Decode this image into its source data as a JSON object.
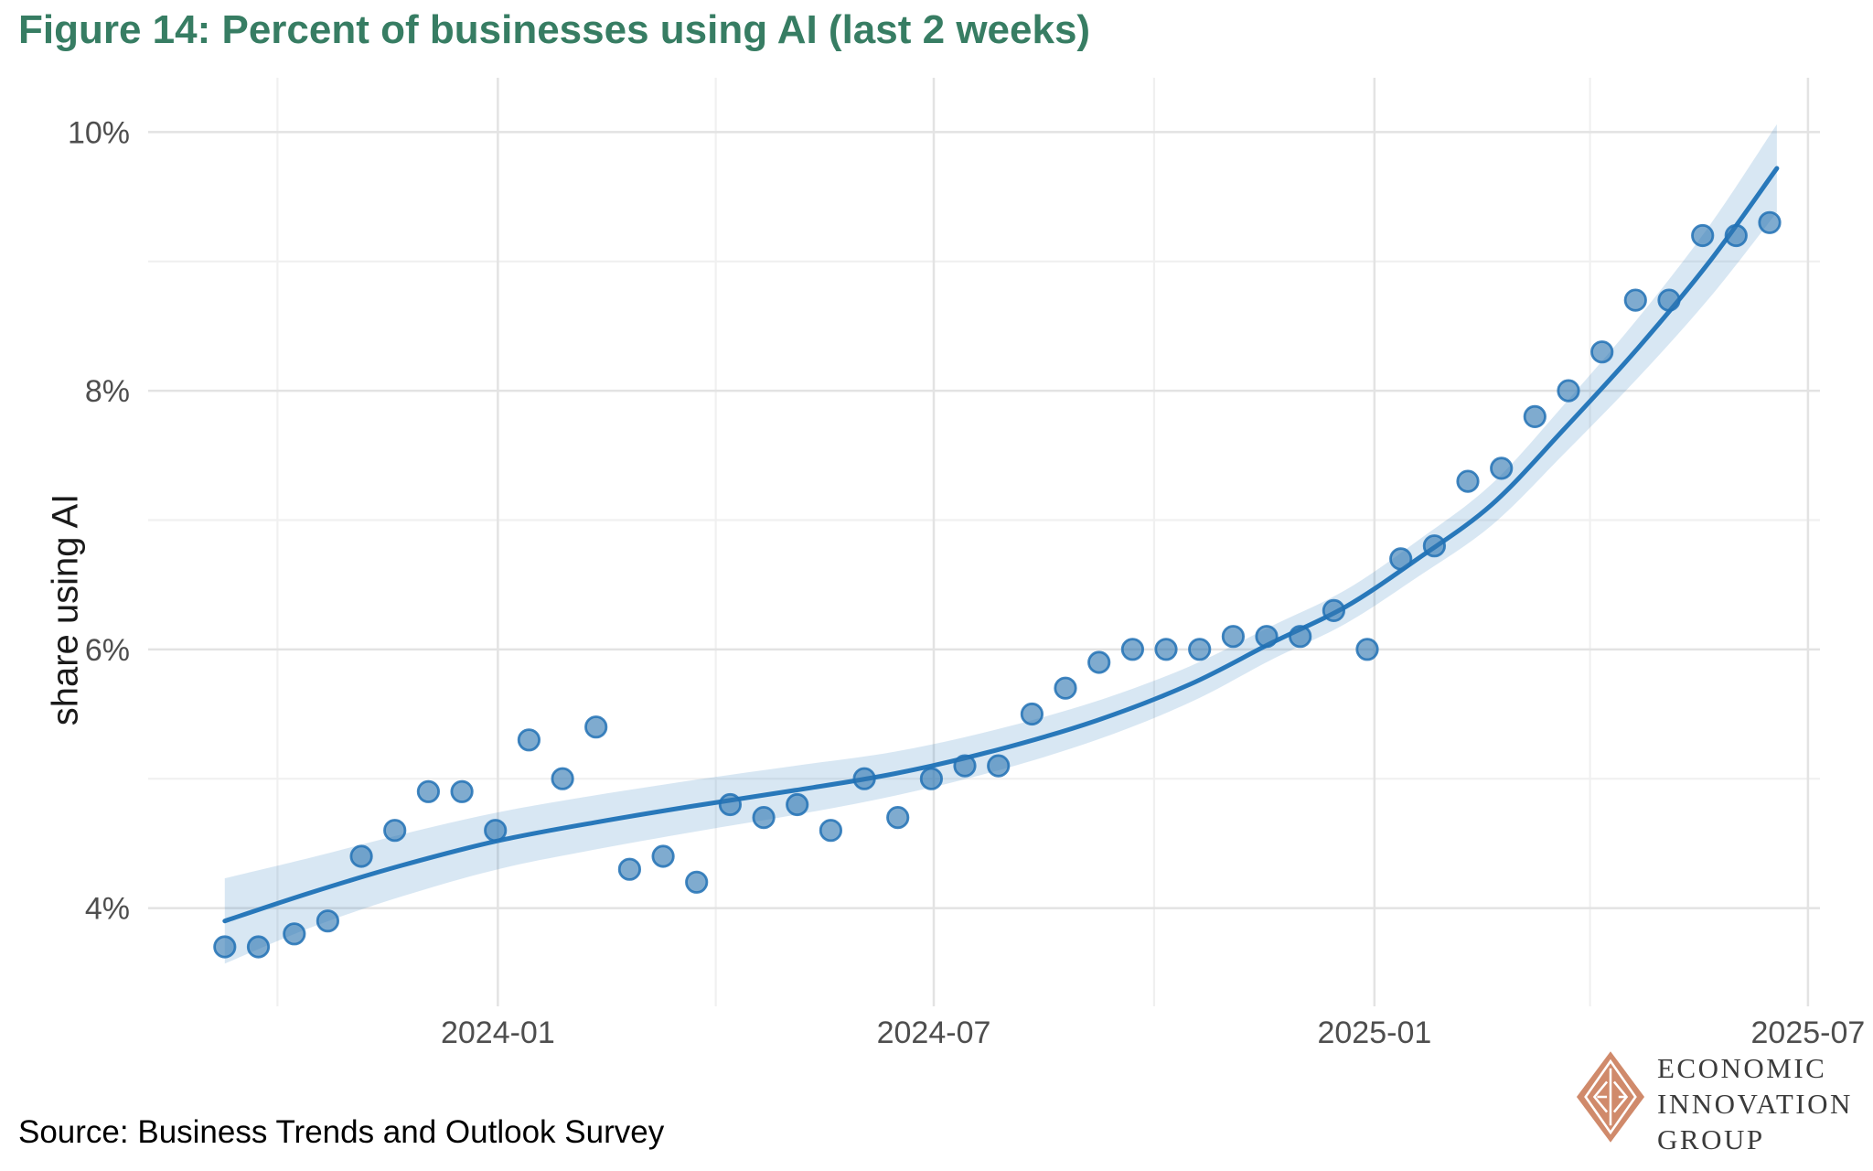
{
  "title": "Figure 14: Percent of businesses using AI (last 2 weeks)",
  "source": "Source: Business Trends and Outlook Survey",
  "logo": {
    "line1": "ECONOMIC",
    "line2": "INNOVATION",
    "line3": "GROUP"
  },
  "colors": {
    "title_green": "#377D63",
    "trend_line": "#2878BA",
    "confidence_band": "rgba(40,120,186,0.18)",
    "point_fill": "rgba(49,119,177,0.62)",
    "point_stroke": "rgba(33,113,181,0.85)",
    "grid_major": "#e3e3e3",
    "grid_minor": "#f0f0f0",
    "tick_text": "#4e4e4e",
    "axis_title_text": "#1a1a1a",
    "logo_diamond": "#D08A6B",
    "logo_text": "#3b3b3b"
  },
  "chart_data": {
    "type": "scatter",
    "title": "Figure 14: Percent of businesses using AI (last 2 weeks)",
    "xlabel": "",
    "ylabel": "share using AI",
    "legend_position": "none",
    "grid": true,
    "xlim": [
      "2023-08-08",
      "2025-07-06"
    ],
    "ylim": [
      3.24,
      10.42
    ],
    "x_ticks": [
      {
        "label": "2024-01",
        "date": "2024-01-01"
      },
      {
        "label": "2024-07",
        "date": "2024-07-01"
      },
      {
        "label": "2025-01",
        "date": "2025-01-01"
      },
      {
        "label": "2025-07",
        "date": "2025-07-01"
      }
    ],
    "x_minor": [
      "2023-10-01",
      "2024-04-01",
      "2024-10-01",
      "2025-04-01"
    ],
    "y_ticks": [
      {
        "label": "4%",
        "value": 4
      },
      {
        "label": "6%",
        "value": 6
      },
      {
        "label": "8%",
        "value": 8
      },
      {
        "label": "10%",
        "value": 10
      }
    ],
    "y_minor": [
      5,
      7,
      9
    ],
    "points": [
      {
        "date": "2023-09-09",
        "value": 3.7
      },
      {
        "date": "2023-09-23",
        "value": 3.7
      },
      {
        "date": "2023-10-08",
        "value": 3.8
      },
      {
        "date": "2023-10-22",
        "value": 3.9
      },
      {
        "date": "2023-11-05",
        "value": 4.4
      },
      {
        "date": "2023-11-19",
        "value": 4.6
      },
      {
        "date": "2023-12-03",
        "value": 4.9
      },
      {
        "date": "2023-12-17",
        "value": 4.9
      },
      {
        "date": "2023-12-31",
        "value": 4.6
      },
      {
        "date": "2024-01-14",
        "value": 5.3
      },
      {
        "date": "2024-01-28",
        "value": 5.0
      },
      {
        "date": "2024-02-11",
        "value": 5.4
      },
      {
        "date": "2024-02-25",
        "value": 4.3
      },
      {
        "date": "2024-03-10",
        "value": 4.4
      },
      {
        "date": "2024-03-24",
        "value": 4.2
      },
      {
        "date": "2024-04-07",
        "value": 4.8
      },
      {
        "date": "2024-04-21",
        "value": 4.7
      },
      {
        "date": "2024-05-05",
        "value": 4.8
      },
      {
        "date": "2024-05-19",
        "value": 4.6
      },
      {
        "date": "2024-06-02",
        "value": 5.0
      },
      {
        "date": "2024-06-16",
        "value": 4.7
      },
      {
        "date": "2024-06-30",
        "value": 5.0
      },
      {
        "date": "2024-07-14",
        "value": 5.1
      },
      {
        "date": "2024-07-28",
        "value": 5.1
      },
      {
        "date": "2024-08-11",
        "value": 5.5
      },
      {
        "date": "2024-08-25",
        "value": 5.7
      },
      {
        "date": "2024-09-08",
        "value": 5.9
      },
      {
        "date": "2024-09-22",
        "value": 6.0
      },
      {
        "date": "2024-10-06",
        "value": 6.0
      },
      {
        "date": "2024-10-20",
        "value": 6.0
      },
      {
        "date": "2024-11-03",
        "value": 6.1
      },
      {
        "date": "2024-11-17",
        "value": 6.1
      },
      {
        "date": "2024-12-01",
        "value": 6.1
      },
      {
        "date": "2024-12-15",
        "value": 6.3
      },
      {
        "date": "2024-12-29",
        "value": 6.0
      },
      {
        "date": "2025-01-12",
        "value": 6.7
      },
      {
        "date": "2025-01-26",
        "value": 6.8
      },
      {
        "date": "2025-02-09",
        "value": 7.3
      },
      {
        "date": "2025-02-23",
        "value": 7.4
      },
      {
        "date": "2025-03-09",
        "value": 7.8
      },
      {
        "date": "2025-03-23",
        "value": 8.0
      },
      {
        "date": "2025-04-06",
        "value": 8.3
      },
      {
        "date": "2025-04-20",
        "value": 8.7
      },
      {
        "date": "2025-05-04",
        "value": 8.7
      },
      {
        "date": "2025-05-18",
        "value": 9.2
      },
      {
        "date": "2025-06-01",
        "value": 9.2
      },
      {
        "date": "2025-06-15",
        "value": 9.3
      }
    ],
    "trend": [
      {
        "date": "2023-09-09",
        "value": 3.9,
        "lo": 3.57,
        "hi": 4.23
      },
      {
        "date": "2023-10-15",
        "value": 4.12,
        "lo": 3.85,
        "hi": 4.39
      },
      {
        "date": "2023-11-22",
        "value": 4.33,
        "lo": 4.09,
        "hi": 4.57
      },
      {
        "date": "2024-01-01",
        "value": 4.52,
        "lo": 4.3,
        "hi": 4.74
      },
      {
        "date": "2024-02-10",
        "value": 4.66,
        "lo": 4.45,
        "hi": 4.87
      },
      {
        "date": "2024-03-23",
        "value": 4.79,
        "lo": 4.59,
        "hi": 4.99
      },
      {
        "date": "2024-05-04",
        "value": 4.91,
        "lo": 4.72,
        "hi": 5.1
      },
      {
        "date": "2024-06-15",
        "value": 5.04,
        "lo": 4.87,
        "hi": 5.21
      },
      {
        "date": "2024-07-27",
        "value": 5.22,
        "lo": 5.06,
        "hi": 5.38
      },
      {
        "date": "2024-09-07",
        "value": 5.45,
        "lo": 5.3,
        "hi": 5.6
      },
      {
        "date": "2024-10-16",
        "value": 5.73,
        "lo": 5.59,
        "hi": 5.87
      },
      {
        "date": "2024-11-19",
        "value": 6.05,
        "lo": 5.92,
        "hi": 6.18
      },
      {
        "date": "2024-12-20",
        "value": 6.33,
        "lo": 6.2,
        "hi": 6.46
      },
      {
        "date": "2025-01-19",
        "value": 6.7,
        "lo": 6.56,
        "hi": 6.84
      },
      {
        "date": "2025-02-19",
        "value": 7.12,
        "lo": 6.96,
        "hi": 7.28
      },
      {
        "date": "2025-03-21",
        "value": 7.7,
        "lo": 7.51,
        "hi": 7.89
      },
      {
        "date": "2025-04-21",
        "value": 8.33,
        "lo": 8.1,
        "hi": 8.56
      },
      {
        "date": "2025-05-21",
        "value": 9.0,
        "lo": 8.72,
        "hi": 9.28
      },
      {
        "date": "2025-06-18",
        "value": 9.72,
        "lo": 9.38,
        "hi": 10.06
      }
    ]
  }
}
